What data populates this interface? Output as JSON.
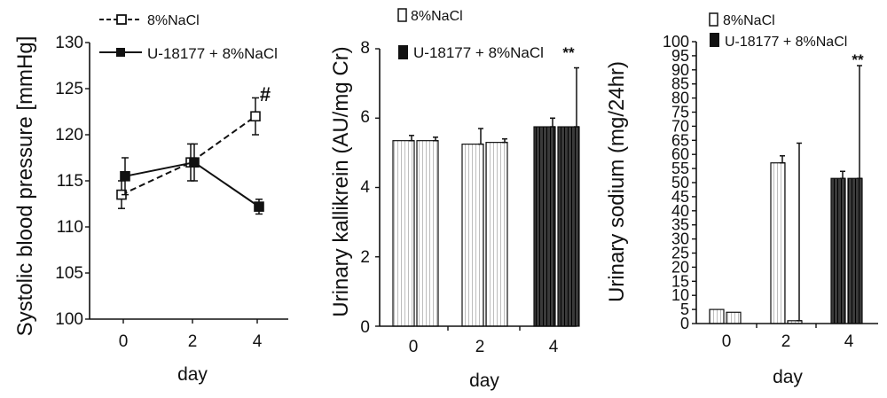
{
  "chart_data": [
    {
      "type": "line",
      "ylabel": "Systolic blood pressure [mmHg]",
      "xlabel": "day",
      "x": [
        0,
        2,
        4
      ],
      "xticks": [
        "0",
        "2",
        "4"
      ],
      "ylim": [
        100,
        130
      ],
      "yticks": [
        "100",
        "105",
        "110",
        "115",
        "120",
        "125",
        "130"
      ],
      "grid": false,
      "legend_position": "top-left",
      "series": [
        {
          "name": "8%NaCl",
          "values": [
            113.5,
            117.0,
            122.0
          ],
          "errors": [
            1.5,
            2.0,
            2.0
          ],
          "style": "dashed",
          "marker": "open-square"
        },
        {
          "name": "U-18177 + 8%NaCl",
          "values": [
            115.5,
            117.0,
            112.2
          ],
          "errors": [
            2.0,
            2.0,
            0.8
          ],
          "style": "solid",
          "marker": "filled-square"
        }
      ],
      "annotations": [
        {
          "x": 4,
          "text": "#"
        }
      ]
    },
    {
      "type": "bar",
      "ylabel": "Urinary kallikrein (AU/mg Cr)",
      "xlabel": "day",
      "categories": [
        "0",
        "2",
        "4"
      ],
      "ylim": [
        0,
        8
      ],
      "yticks": [
        "0",
        "2",
        "4",
        "6",
        "8"
      ],
      "grid": false,
      "legend_position": "top-left",
      "series": [
        {
          "name": "8%NaCl",
          "values": [
            5.35,
            5.25,
            5.75
          ],
          "errors": [
            0.15,
            0.45,
            0.25
          ]
        },
        {
          "name": "U-18177 + 8%NaCl",
          "values": [
            5.35,
            5.3,
            5.75
          ],
          "errors": [
            0.1,
            0.1,
            1.7
          ]
        }
      ],
      "annotations": [
        {
          "category": "4",
          "text": "**"
        }
      ]
    },
    {
      "type": "bar",
      "ylabel": "Urinary sodium (mg/24hr)",
      "xlabel": "day",
      "categories": [
        "0",
        "2",
        "4"
      ],
      "ylim": [
        0,
        100
      ],
      "yticks": [
        "0",
        "5",
        "10",
        "15",
        "20",
        "25",
        "30",
        "35",
        "40",
        "45",
        "50",
        "55",
        "60",
        "65",
        "70",
        "75",
        "80",
        "85",
        "90",
        "95",
        "100"
      ],
      "grid": false,
      "legend_position": "top-left",
      "series": [
        {
          "name": "8%NaCl",
          "values": [
            5,
            57,
            51.5
          ],
          "errors": [
            0,
            2.5,
            2.5
          ]
        },
        {
          "name": "U-18177 + 8%NaCl",
          "values": [
            4,
            1,
            51.5
          ],
          "errors": [
            0,
            63,
            40
          ]
        }
      ],
      "annotations": [
        {
          "category": "4",
          "text": "**"
        }
      ]
    }
  ]
}
